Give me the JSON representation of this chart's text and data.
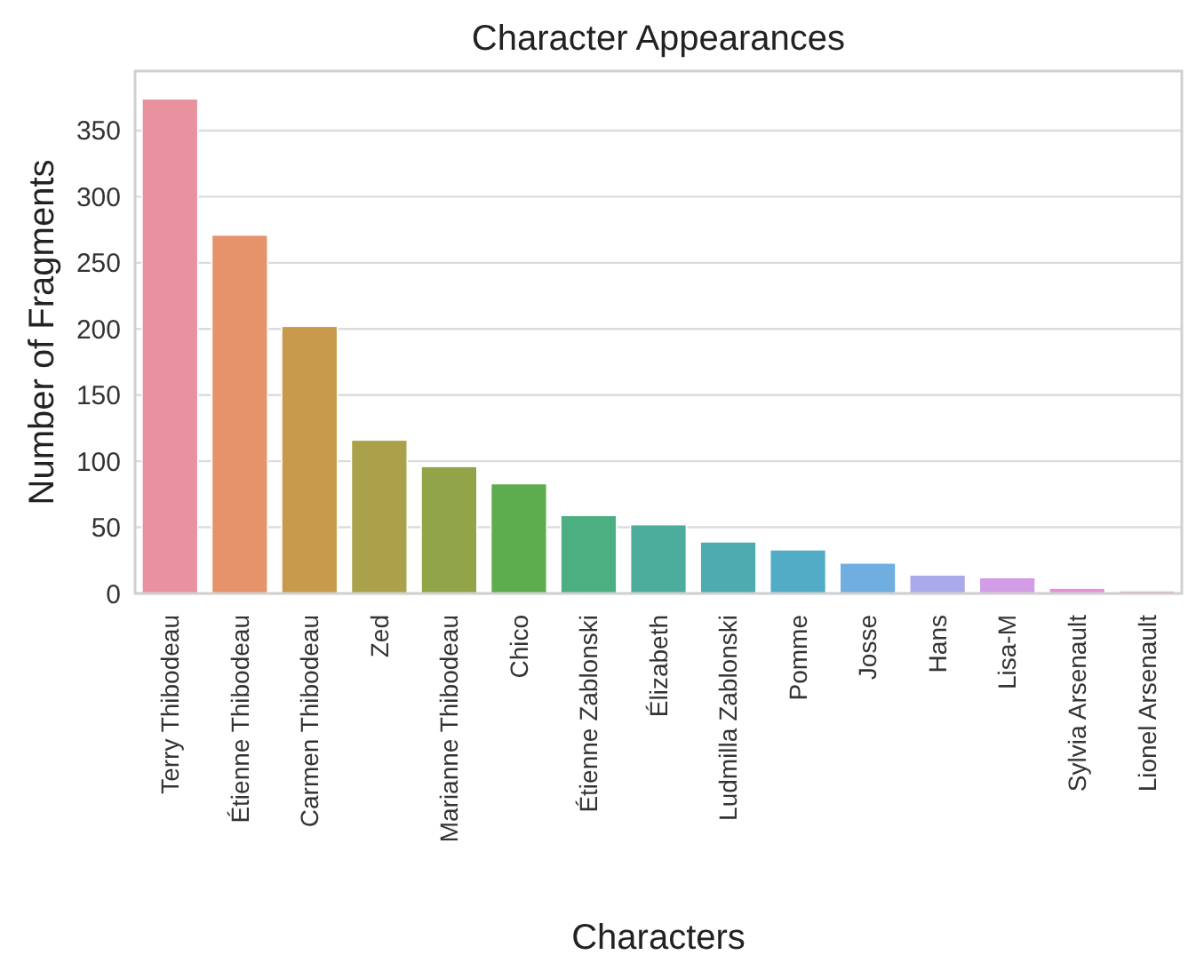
{
  "chart_data": {
    "type": "bar",
    "title": "Character Appearances",
    "xlabel": "Characters",
    "ylabel": "Number of Fragments",
    "categories": [
      "Terry Thibodeau",
      "Étienne Thibodeau",
      "Carmen Thibodeau",
      "Zed",
      "Marianne Thibodeau",
      "Chico",
      "Étienne Zablonski",
      "Élizabeth",
      "Ludmilla Zablonski",
      "Pomme",
      "Josse",
      "Hans",
      "Lisa-M",
      "Sylvia Arsenault",
      "Lionel Arsenault"
    ],
    "values": [
      374,
      271,
      202,
      116,
      96,
      83,
      59,
      52,
      39,
      33,
      23,
      14,
      12,
      4,
      2
    ],
    "colors": [
      "#e8929f",
      "#e6936b",
      "#c89a4b",
      "#aba14a",
      "#91a447",
      "#5dac4d",
      "#4caf82",
      "#4dad9d",
      "#4eabaf",
      "#52acc5",
      "#70aee2",
      "#aaa9ea",
      "#d29de6",
      "#e68fd6",
      "#e894b8"
    ],
    "ylim": [
      0,
      395
    ],
    "yticks": [
      0,
      50,
      100,
      150,
      200,
      250,
      300,
      350
    ],
    "grid": "y"
  }
}
